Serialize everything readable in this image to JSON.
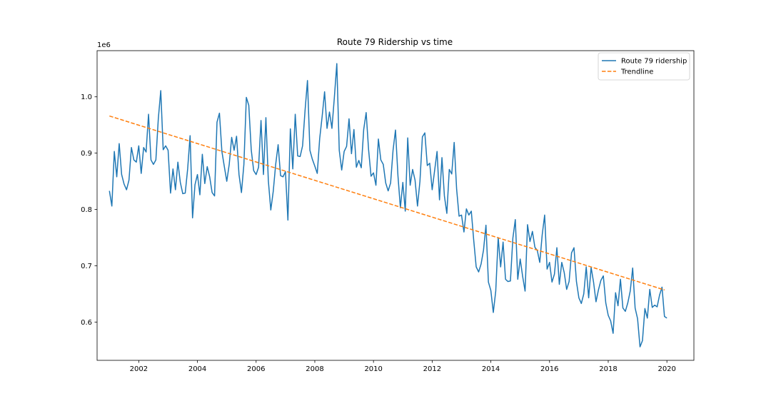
{
  "chart_data": {
    "type": "line",
    "title": "Route 79 Ridership vs time",
    "xlabel": "",
    "ylabel": "",
    "y_offset_label": "1e6",
    "xlim": [
      2000.58,
      2020.92
    ],
    "ylim": [
      0.532,
      1.082
    ],
    "x_ticks": [
      2002,
      2004,
      2006,
      2008,
      2010,
      2012,
      2014,
      2016,
      2018,
      2020
    ],
    "x_tick_labels": [
      "2002",
      "2004",
      "2006",
      "2008",
      "2010",
      "2012",
      "2014",
      "2016",
      "2018",
      "2020"
    ],
    "y_ticks": [
      0.6,
      0.7,
      0.8,
      0.9,
      1.0
    ],
    "y_tick_labels": [
      "0.6",
      "0.7",
      "0.8",
      "0.9",
      "1.0"
    ],
    "grid": false,
    "legend_position": "top-right",
    "series": [
      {
        "name": "Route 79 ridership",
        "color": "#1f77b4",
        "style": "solid",
        "start_year": 2001,
        "frequency": "monthly",
        "values": [
          0.833,
          0.806,
          0.903,
          0.858,
          0.917,
          0.862,
          0.845,
          0.835,
          0.852,
          0.91,
          0.888,
          0.884,
          0.913,
          0.864,
          0.91,
          0.902,
          0.969,
          0.888,
          0.88,
          0.888,
          0.961,
          1.011,
          0.906,
          0.913,
          0.905,
          0.829,
          0.872,
          0.835,
          0.884,
          0.848,
          0.828,
          0.829,
          0.872,
          0.931,
          0.785,
          0.844,
          0.862,
          0.826,
          0.898,
          0.846,
          0.876,
          0.858,
          0.83,
          0.824,
          0.955,
          0.971,
          0.903,
          0.876,
          0.85,
          0.88,
          0.928,
          0.905,
          0.93,
          0.862,
          0.83,
          0.88,
          0.999,
          0.985,
          0.906,
          0.869,
          0.862,
          0.875,
          0.958,
          0.862,
          0.963,
          0.851,
          0.799,
          0.832,
          0.88,
          0.915,
          0.86,
          0.858,
          0.867,
          0.781,
          0.943,
          0.872,
          0.969,
          0.895,
          0.894,
          0.913,
          0.975,
          1.029,
          0.905,
          0.889,
          0.877,
          0.864,
          0.926,
          0.965,
          1.009,
          0.944,
          0.973,
          0.944,
          0.999,
          1.059,
          0.905,
          0.87,
          0.903,
          0.912,
          0.961,
          0.899,
          0.942,
          0.875,
          0.887,
          0.874,
          0.942,
          0.972,
          0.906,
          0.859,
          0.865,
          0.843,
          0.925,
          0.888,
          0.88,
          0.847,
          0.833,
          0.847,
          0.905,
          0.941,
          0.86,
          0.803,
          0.848,
          0.797,
          0.927,
          0.843,
          0.871,
          0.852,
          0.806,
          0.85,
          0.929,
          0.936,
          0.878,
          0.882,
          0.835,
          0.869,
          0.903,
          0.817,
          0.892,
          0.824,
          0.793,
          0.871,
          0.863,
          0.919,
          0.836,
          0.788,
          0.79,
          0.76,
          0.801,
          0.79,
          0.797,
          0.745,
          0.698,
          0.689,
          0.703,
          0.728,
          0.772,
          0.671,
          0.656,
          0.617,
          0.655,
          0.75,
          0.698,
          0.742,
          0.676,
          0.672,
          0.673,
          0.749,
          0.782,
          0.676,
          0.712,
          0.681,
          0.655,
          0.773,
          0.743,
          0.761,
          0.733,
          0.727,
          0.706,
          0.755,
          0.79,
          0.694,
          0.706,
          0.671,
          0.685,
          0.732,
          0.667,
          0.706,
          0.688,
          0.658,
          0.672,
          0.723,
          0.732,
          0.672,
          0.643,
          0.633,
          0.65,
          0.698,
          0.643,
          0.697,
          0.671,
          0.636,
          0.657,
          0.674,
          0.682,
          0.634,
          0.612,
          0.602,
          0.58,
          0.652,
          0.629,
          0.676,
          0.625,
          0.619,
          0.634,
          0.655,
          0.696,
          0.625,
          0.606,
          0.556,
          0.567,
          0.624,
          0.607,
          0.658,
          0.626,
          0.63,
          0.627,
          0.648,
          0.662,
          0.61,
          0.607
        ]
      },
      {
        "name": "Trendline",
        "color": "#ff7f0e",
        "style": "dashed",
        "x": [
          2001.0,
          2019.92
        ],
        "y": [
          0.966,
          0.657
        ]
      }
    ]
  }
}
